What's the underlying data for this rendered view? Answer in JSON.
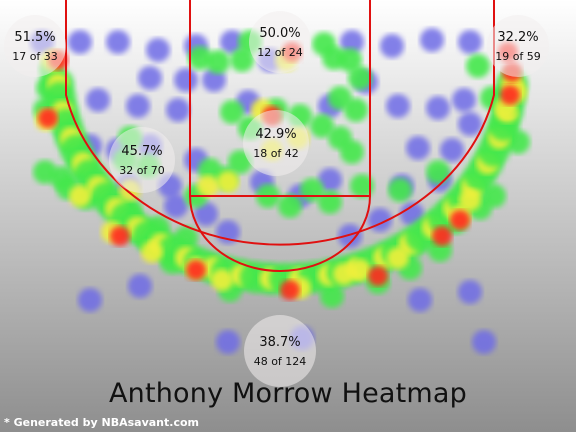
{
  "chart_data": {
    "type": "heatmap",
    "title": "Anthony Morrow Heatmap",
    "zones": [
      {
        "zone": "Left Corner 3",
        "pct": "51.5%",
        "made_of": "17 of 33"
      },
      {
        "zone": "Restricted Area",
        "pct": "50.0%",
        "made_of": "12 of 24"
      },
      {
        "zone": "Right Corner 3",
        "pct": "32.2%",
        "made_of": "19 of 59"
      },
      {
        "zone": "Left Mid-Range",
        "pct": "45.7%",
        "made_of": "32 of 70"
      },
      {
        "zone": "Paint",
        "pct": "42.9%",
        "made_of": "18 of 42"
      },
      {
        "zone": "Above the Break 3",
        "pct": "38.7%",
        "made_of": "48 of 124"
      }
    ],
    "heat_scale": [
      "#6f6be6",
      "#42e84a",
      "#f0f03a",
      "#ff2a1e"
    ],
    "court_line_color": "#e01010"
  },
  "footer": {
    "credit": "* Generated by NBAsavant.com"
  }
}
